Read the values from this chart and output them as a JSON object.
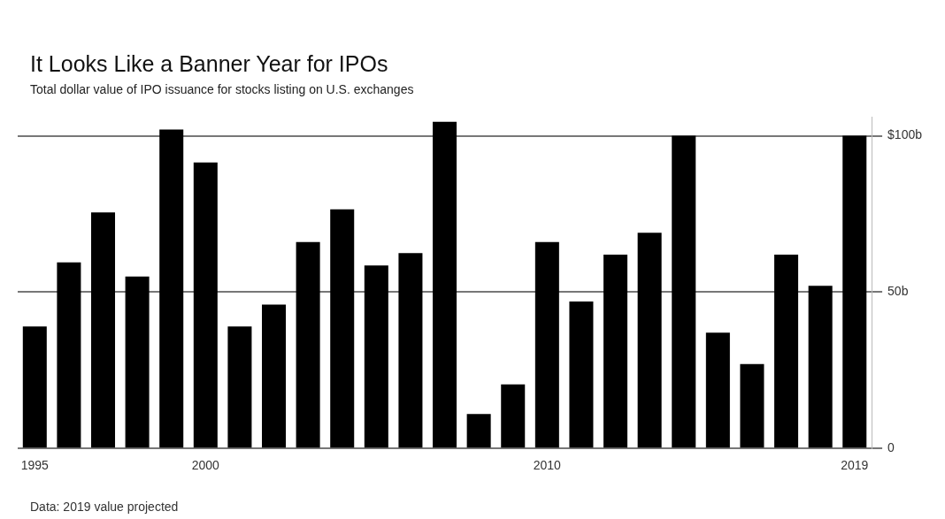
{
  "chart_data": {
    "type": "bar",
    "title": "It Looks Like a Banner Year for IPOs",
    "subtitle": "Total dollar value of IPO issuance for stocks listing on U.S. exchanges",
    "categories": [
      "1995",
      null,
      null,
      null,
      null,
      "2000",
      null,
      null,
      null,
      null,
      null,
      null,
      null,
      null,
      null,
      "2010",
      null,
      null,
      null,
      null,
      null,
      null,
      null,
      null,
      "2019"
    ],
    "values": [
      39,
      59.5,
      75.5,
      55,
      102,
      91.5,
      39,
      46,
      66,
      76.5,
      58.5,
      62.5,
      104.5,
      11,
      20.5,
      66,
      47,
      62,
      69,
      100,
      37,
      27,
      62,
      52,
      100
    ],
    "color": "#000000",
    "ylim": [
      0,
      106
    ],
    "yticks": [
      0,
      {
        "value": 50,
        "label": "50b"
      },
      {
        "value": 100,
        "label": "$100b"
      }
    ],
    "grid": "y",
    "legend": false,
    "annotations": [
      "Data: 2019 value projected"
    ]
  }
}
